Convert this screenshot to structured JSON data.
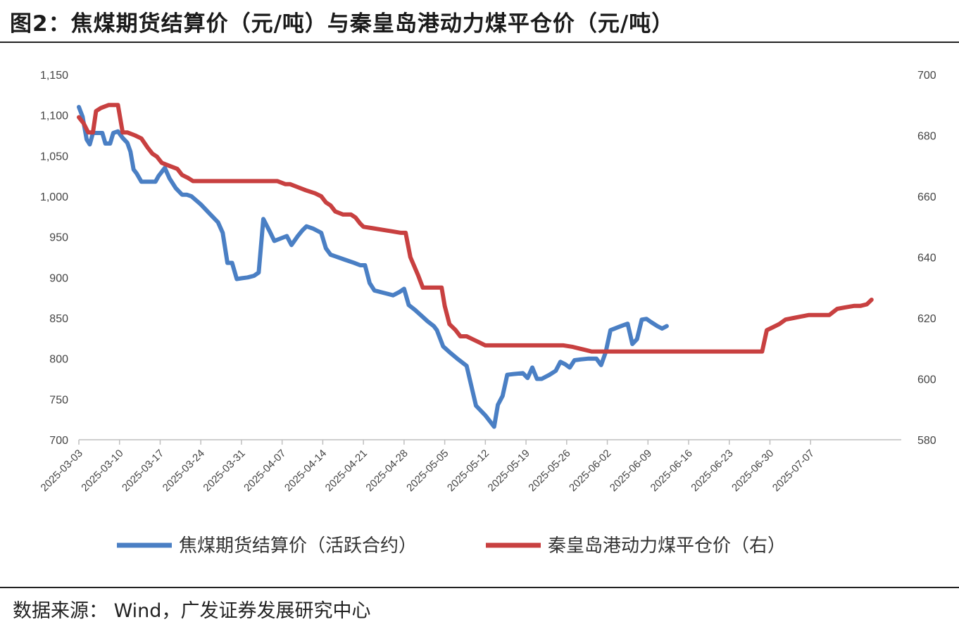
{
  "header": {
    "title": "图2：焦煤期货结算价（元/吨）与秦皇岛港动力煤平仓价（元/吨）"
  },
  "footer": {
    "source": "数据来源：  Wind，广发证券发展研究中心"
  },
  "chart_data": {
    "type": "line",
    "x_labels": [
      "2025-03-03",
      "2025-03-10",
      "2025-03-17",
      "2025-03-24",
      "2025-03-31",
      "2025-04-07",
      "2025-04-14",
      "2025-04-21",
      "2025-04-28",
      "2025-05-05",
      "2025-05-12",
      "2025-05-19",
      "2025-05-26",
      "2025-06-02",
      "2025-06-09",
      "2025-06-16",
      "2025-06-23",
      "2025-06-30",
      "2025-07-07"
    ],
    "y_left": {
      "ylim": [
        700,
        1150
      ],
      "ticks": [
        "700",
        "750",
        "800",
        "850",
        "900",
        "950",
        "1,000",
        "1,050",
        "1,100",
        "1,150"
      ]
    },
    "y_right": {
      "ylim": [
        580,
        700
      ],
      "ticks": [
        "580",
        "600",
        "620",
        "640",
        "660",
        "680",
        "700"
      ]
    },
    "grid": false,
    "legend_position": "bottom",
    "series": [
      {
        "name": "焦煤期货结算价（活跃合约）",
        "axis": "left",
        "color": "#4a7fc4",
        "values": [
          [
            0,
            1110
          ],
          [
            1.2,
            1098
          ],
          [
            2.5,
            1070
          ],
          [
            3.5,
            1064
          ],
          [
            4.5,
            1078
          ],
          [
            6,
            1078
          ],
          [
            7.5,
            1078
          ],
          [
            8.5,
            1065
          ],
          [
            10,
            1065
          ],
          [
            11,
            1078
          ],
          [
            12.5,
            1080
          ],
          [
            14,
            1072
          ],
          [
            15.5,
            1066
          ],
          [
            16.5,
            1055
          ],
          [
            17.5,
            1033
          ],
          [
            18.5,
            1028
          ],
          [
            20,
            1018
          ],
          [
            21.5,
            1018
          ],
          [
            23,
            1018
          ],
          [
            24.5,
            1018
          ],
          [
            25.5,
            1025
          ],
          [
            27.5,
            1035
          ],
          [
            29,
            1022
          ],
          [
            31,
            1010
          ],
          [
            33,
            1002
          ],
          [
            34.5,
            1002
          ],
          [
            36,
            1000
          ],
          [
            39,
            990
          ],
          [
            42,
            978
          ],
          [
            44.5,
            968
          ],
          [
            46,
            955
          ],
          [
            47.5,
            918
          ],
          [
            49,
            918
          ],
          [
            50.5,
            898
          ],
          [
            52,
            899
          ],
          [
            54,
            900
          ],
          [
            56,
            902
          ],
          [
            57.5,
            906
          ],
          [
            59,
            972
          ],
          [
            61,
            957
          ],
          [
            62.5,
            945
          ],
          [
            64.5,
            948
          ],
          [
            66.5,
            951
          ],
          [
            68,
            940
          ],
          [
            70,
            951
          ],
          [
            71.5,
            958
          ],
          [
            72.8,
            963
          ],
          [
            75,
            960
          ],
          [
            77.5,
            955
          ],
          [
            79,
            936
          ],
          [
            80.5,
            928
          ],
          [
            82,
            926
          ],
          [
            85,
            922
          ],
          [
            88,
            918
          ],
          [
            90,
            915
          ],
          [
            91.5,
            915
          ],
          [
            93,
            893
          ],
          [
            94.5,
            884
          ],
          [
            96.5,
            882
          ],
          [
            98.5,
            880
          ],
          [
            100.5,
            878
          ],
          [
            102.5,
            882
          ],
          [
            104,
            886
          ],
          [
            105.5,
            866
          ],
          [
            107.5,
            860
          ],
          [
            109.5,
            853
          ],
          [
            111.5,
            846
          ],
          [
            113.5,
            840
          ],
          [
            114.5,
            835
          ],
          [
            116.5,
            815
          ],
          [
            118.5,
            808
          ],
          [
            121,
            800
          ],
          [
            124,
            791
          ],
          [
            127,
            742
          ],
          [
            130,
            730
          ],
          [
            132.8,
            716
          ],
          [
            134,
            743
          ],
          [
            135.5,
            754
          ],
          [
            137,
            780
          ],
          [
            139,
            781
          ],
          [
            142,
            782
          ],
          [
            143.5,
            776
          ],
          [
            145,
            789
          ],
          [
            146.5,
            775
          ],
          [
            148,
            775
          ],
          [
            150.5,
            780
          ],
          [
            152.5,
            785
          ],
          [
            154,
            796
          ],
          [
            155.5,
            793
          ],
          [
            157,
            789
          ],
          [
            158.5,
            798
          ],
          [
            160.5,
            799
          ],
          [
            163,
            800
          ],
          [
            165.5,
            800
          ],
          [
            167,
            792
          ],
          [
            168.5,
            808
          ],
          [
            170,
            835
          ],
          [
            172,
            838
          ],
          [
            174,
            841
          ],
          [
            175.5,
            843
          ],
          [
            177,
            818
          ],
          [
            178.5,
            824
          ],
          [
            180,
            848
          ],
          [
            181.5,
            849
          ],
          [
            183,
            845
          ],
          [
            185,
            840
          ],
          [
            186.5,
            837
          ],
          [
            188,
            840
          ]
        ]
      },
      {
        "name": "秦皇岛港动力煤平仓价（右）",
        "axis": "right",
        "color": "#c84040",
        "values": [
          [
            0,
            686
          ],
          [
            1.5,
            684
          ],
          [
            3,
            681
          ],
          [
            4.5,
            681
          ],
          [
            5.5,
            688
          ],
          [
            7,
            689
          ],
          [
            9.5,
            690
          ],
          [
            11,
            690
          ],
          [
            12.5,
            690
          ],
          [
            14,
            681
          ],
          [
            15.5,
            681
          ],
          [
            18,
            680
          ],
          [
            20,
            679
          ],
          [
            22,
            676
          ],
          [
            23.5,
            674
          ],
          [
            25,
            673
          ],
          [
            26.5,
            671
          ],
          [
            29,
            670
          ],
          [
            31.5,
            669
          ],
          [
            33,
            667
          ],
          [
            35,
            666
          ],
          [
            36.5,
            665
          ],
          [
            39,
            665
          ],
          [
            45,
            665
          ],
          [
            53,
            665
          ],
          [
            60,
            665
          ],
          [
            63.5,
            665
          ],
          [
            66,
            664
          ],
          [
            67.5,
            664
          ],
          [
            70,
            663
          ],
          [
            72.5,
            662
          ],
          [
            75.5,
            661
          ],
          [
            77.5,
            660
          ],
          [
            79,
            658
          ],
          [
            80.5,
            657
          ],
          [
            82,
            655
          ],
          [
            84.5,
            654
          ],
          [
            87,
            654
          ],
          [
            88.5,
            653
          ],
          [
            90,
            651
          ],
          [
            91,
            650
          ],
          [
            94,
            649.5
          ],
          [
            97,
            649
          ],
          [
            100,
            648.5
          ],
          [
            103,
            648
          ],
          [
            104.5,
            648
          ],
          [
            106,
            640
          ],
          [
            108.5,
            634
          ],
          [
            110,
            630
          ],
          [
            111.5,
            630
          ],
          [
            114,
            630
          ],
          [
            116,
            630
          ],
          [
            117,
            624
          ],
          [
            118.5,
            618
          ],
          [
            120.5,
            616
          ],
          [
            122,
            614
          ],
          [
            124,
            614
          ],
          [
            126,
            613
          ],
          [
            128,
            612
          ],
          [
            130,
            611
          ],
          [
            132,
            611
          ],
          [
            135,
            611
          ],
          [
            140,
            611
          ],
          [
            145,
            611
          ],
          [
            150,
            611
          ],
          [
            155,
            611
          ],
          [
            158,
            610.5
          ],
          [
            160,
            610
          ],
          [
            162,
            609.5
          ],
          [
            164,
            609
          ],
          [
            166,
            609
          ],
          [
            172,
            609
          ],
          [
            180,
            609
          ],
          [
            190,
            609
          ],
          [
            200,
            609
          ],
          [
            210,
            609
          ],
          [
            212,
            609
          ],
          [
            214,
            609
          ],
          [
            216,
            609
          ],
          [
            218.5,
            609
          ],
          [
            220,
            616
          ],
          [
            222,
            617
          ],
          [
            224,
            618
          ],
          [
            226,
            619.5
          ],
          [
            228.5,
            620
          ],
          [
            231,
            620.5
          ],
          [
            233.5,
            621
          ],
          [
            236,
            621
          ],
          [
            238.5,
            621
          ],
          [
            240,
            621
          ],
          [
            242.5,
            623
          ],
          [
            245,
            623.5
          ],
          [
            248,
            624
          ],
          [
            250,
            624
          ],
          [
            252,
            624.5
          ],
          [
            253.5,
            626
          ]
        ]
      }
    ]
  }
}
